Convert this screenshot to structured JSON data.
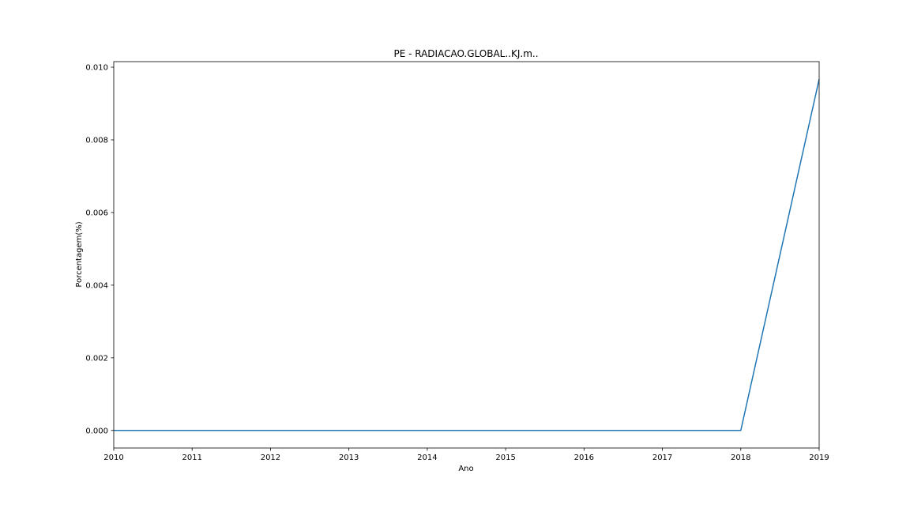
{
  "chart_data": {
    "type": "line",
    "title": "PE - RADIACAO.GLOBAL..KJ.m..",
    "xlabel": "Ano",
    "ylabel": "Porcentagem(%)",
    "x": [
      2010,
      2011,
      2012,
      2013,
      2014,
      2015,
      2016,
      2017,
      2018,
      2019
    ],
    "series": [
      {
        "values": [
          0.0,
          0.0,
          0.0,
          0.0,
          0.0,
          0.0,
          0.0,
          0.0,
          0.0,
          0.00967
        ],
        "color": "#1f77b4"
      }
    ],
    "xlim": [
      2010,
      2019
    ],
    "ylim": [
      -0.000483,
      0.010153
    ],
    "xticks": [
      "2010",
      "2011",
      "2012",
      "2013",
      "2014",
      "2015",
      "2016",
      "2017",
      "2018",
      "2019"
    ],
    "yticks": [
      "0.000",
      "0.002",
      "0.004",
      "0.006",
      "0.008",
      "0.010"
    ],
    "grid": false,
    "legend": false
  }
}
